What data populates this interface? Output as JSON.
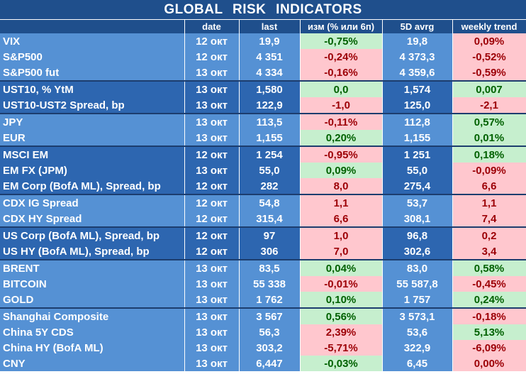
{
  "title": "GLOBAL   RISK   INDICATORS",
  "headers": {
    "name": "",
    "date": "date",
    "last": "last",
    "change": "изм (% или 6п)",
    "avg": "5D avrg",
    "trend": "weekly trend"
  },
  "colors": {
    "header_bg": "#1f4f8c",
    "light_row": "#5591d4",
    "dark_row": "#2d66b0",
    "positive_bg": "#c6efce",
    "positive_text": "#006100",
    "negative_bg": "#ffc7ce",
    "negative_text": "#9c0006"
  },
  "groups": [
    {
      "shade": "light",
      "rows": [
        {
          "name": "VIX",
          "date": "12 окт",
          "last": "19,9",
          "change": "-0,75%",
          "change_sign": "pos",
          "avg": "19,8",
          "trend": "0,09%",
          "trend_sign": "neg"
        },
        {
          "name": "S&P500",
          "date": "12 окт",
          "last": "4 351",
          "change": "-0,24%",
          "change_sign": "neg",
          "avg": "4 373,3",
          "trend": "-0,52%",
          "trend_sign": "neg"
        },
        {
          "name": "S&P500 fut",
          "date": "13 окт",
          "last": "4 334",
          "change": "-0,16%",
          "change_sign": "neg",
          "avg": "4 359,6",
          "trend": "-0,59%",
          "trend_sign": "neg"
        }
      ]
    },
    {
      "shade": "dark",
      "rows": [
        {
          "name": "UST10, % YtM",
          "date": "13 окт",
          "last": "1,580",
          "change": "0,0",
          "change_sign": "pos",
          "avg": "1,574",
          "trend": "0,007",
          "trend_sign": "pos"
        },
        {
          "name": "UST10-UST2 Spread, bp",
          "date": "13 окт",
          "last": "122,9",
          "change": "-1,0",
          "change_sign": "neg",
          "avg": "125,0",
          "trend": "-2,1",
          "trend_sign": "neg"
        }
      ]
    },
    {
      "shade": "light",
      "rows": [
        {
          "name": "JPY",
          "date": "13 окт",
          "last": "113,5",
          "change": "-0,11%",
          "change_sign": "neg",
          "avg": "112,8",
          "trend": "0,57%",
          "trend_sign": "pos"
        },
        {
          "name": "EUR",
          "date": "13 окт",
          "last": "1,155",
          "change": "0,20%",
          "change_sign": "pos",
          "avg": "1,155",
          "trend": "0,01%",
          "trend_sign": "pos"
        }
      ]
    },
    {
      "shade": "dark",
      "rows": [
        {
          "name": "MSCI EM",
          "date": "12 окт",
          "last": "1 254",
          "change": "-0,95%",
          "change_sign": "neg",
          "avg": "1 251",
          "trend": "0,18%",
          "trend_sign": "pos"
        },
        {
          "name": "EM FX (JPM)",
          "date": "13 окт",
          "last": "55,0",
          "change": "0,09%",
          "change_sign": "pos",
          "avg": "55,0",
          "trend": "-0,09%",
          "trend_sign": "neg"
        },
        {
          "name": "EM Corp (BofA ML), Spread, bp",
          "date": "12 окт",
          "last": "282",
          "change": "8,0",
          "change_sign": "neg",
          "avg": "275,4",
          "trend": "6,6",
          "trend_sign": "neg"
        }
      ]
    },
    {
      "shade": "light",
      "rows": [
        {
          "name": "CDX IG Spread",
          "date": "12 окт",
          "last": "54,8",
          "change": "1,1",
          "change_sign": "neg",
          "avg": "53,7",
          "trend": "1,1",
          "trend_sign": "neg"
        },
        {
          "name": "CDX HY Spread",
          "date": "12 окт",
          "last": "315,4",
          "change": "6,6",
          "change_sign": "neg",
          "avg": "308,1",
          "trend": "7,4",
          "trend_sign": "neg"
        }
      ]
    },
    {
      "shade": "dark",
      "rows": [
        {
          "name": "US Corp (BofA ML), Spread, bp",
          "date": "12 окт",
          "last": "97",
          "change": "1,0",
          "change_sign": "neg",
          "avg": "96,8",
          "trend": "0,2",
          "trend_sign": "neg"
        },
        {
          "name": "US HY (BofA ML), Spread, bp",
          "date": "12 окт",
          "last": "306",
          "change": "7,0",
          "change_sign": "neg",
          "avg": "302,6",
          "trend": "3,4",
          "trend_sign": "neg"
        }
      ]
    },
    {
      "shade": "light",
      "rows": [
        {
          "name": "BRENT",
          "date": "13 окт",
          "last": "83,5",
          "change": "0,04%",
          "change_sign": "pos",
          "avg": "83,0",
          "trend": "0,58%",
          "trend_sign": "pos"
        },
        {
          "name": "BITCOIN",
          "date": "13 окт",
          "last": "55 338",
          "change": "-0,01%",
          "change_sign": "neg",
          "avg": "55 587,8",
          "trend": "-0,45%",
          "trend_sign": "neg"
        },
        {
          "name": "GOLD",
          "date": "13 окт",
          "last": "1 762",
          "change": "0,10%",
          "change_sign": "pos",
          "avg": "1 757",
          "trend": "0,24%",
          "trend_sign": "pos"
        }
      ]
    },
    {
      "shade": "light",
      "rows": [
        {
          "name": "Shanghai Composite",
          "date": "13 окт",
          "last": "3 567",
          "change": "0,56%",
          "change_sign": "pos",
          "avg": "3 573,1",
          "trend": "-0,18%",
          "trend_sign": "neg"
        },
        {
          "name": "China 5Y CDS",
          "date": "13 окт",
          "last": "56,3",
          "change": "2,39%",
          "change_sign": "neg",
          "avg": "53,6",
          "trend": "5,13%",
          "trend_sign": "pos"
        },
        {
          "name": "China HY (BofA ML)",
          "date": "13 окт",
          "last": "303,2",
          "change": "-5,71%",
          "change_sign": "neg",
          "avg": "322,9",
          "trend": "-6,09%",
          "trend_sign": "neg"
        },
        {
          "name": "CNY",
          "date": "13 окт",
          "last": "6,447",
          "change": "-0,03%",
          "change_sign": "pos",
          "avg": "6,45",
          "trend": "0,00%",
          "trend_sign": "neg"
        }
      ]
    }
  ]
}
